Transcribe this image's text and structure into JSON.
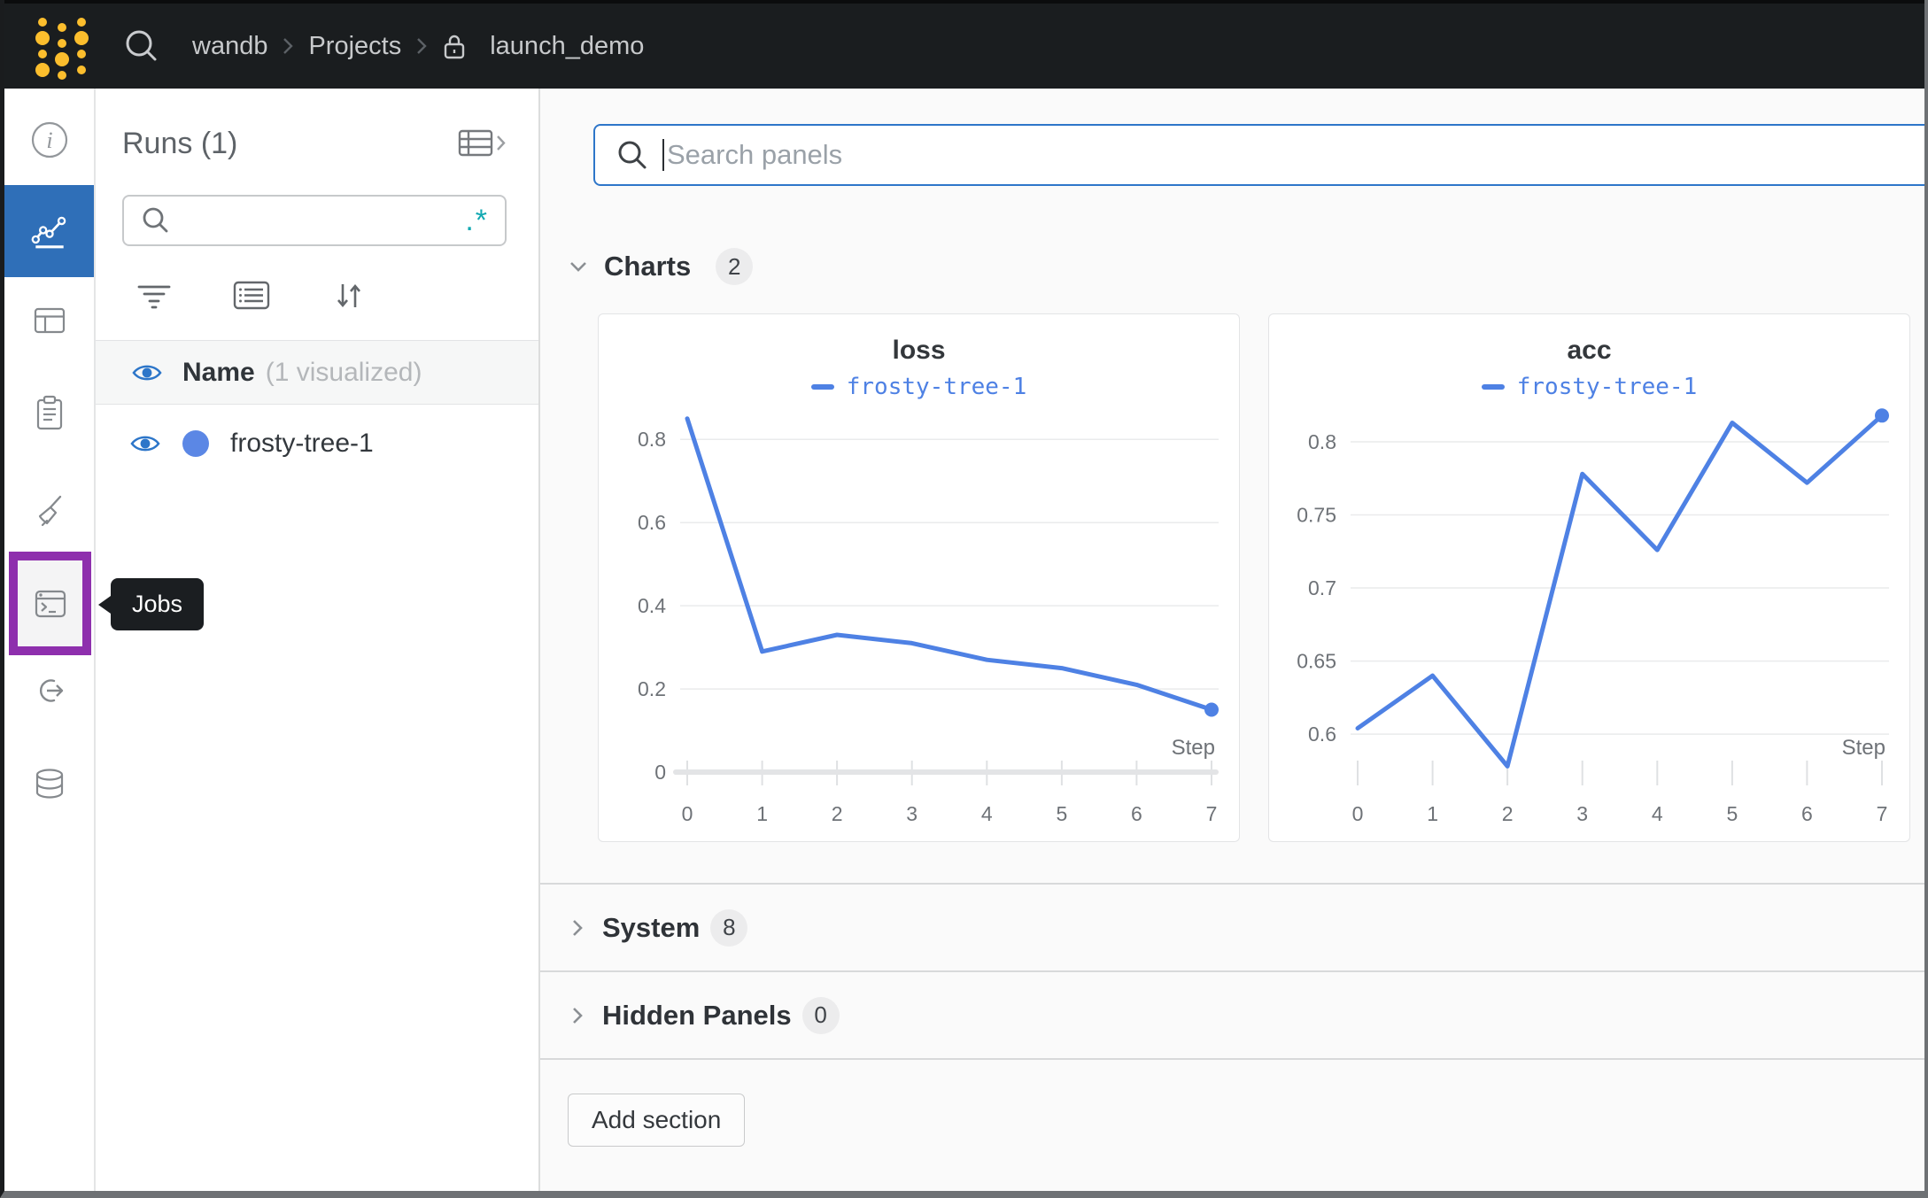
{
  "topbar": {
    "breadcrumb": [
      "wandb",
      "Projects",
      "launch_demo"
    ]
  },
  "sidebar": {
    "tooltip": "Jobs"
  },
  "runs_panel": {
    "title": "Runs (1)",
    "search_value": "",
    "regex_icon": ".*",
    "header_row": {
      "name_label": "Name",
      "visualized_label": "(1 visualized)"
    },
    "runs": [
      {
        "name": "frosty-tree-1",
        "color": "#5b87e5"
      }
    ]
  },
  "main": {
    "search": {
      "placeholder": "Search panels",
      "value": ""
    },
    "sections": [
      {
        "label": "Charts",
        "count": "2",
        "expanded": true
      },
      {
        "label": "System",
        "count": "8",
        "expanded": false
      },
      {
        "label": "Hidden Panels",
        "count": "0",
        "expanded": false
      }
    ],
    "add_section_label": "Add section"
  },
  "colors": {
    "topbar_bg": "#1a1d1f",
    "logo_yellow": "#fcbe2d",
    "accent_blue": "#2e76c9",
    "sidebar_active_blue": "#2f6fb8",
    "highlight_purple": "#8e2fad",
    "regex_teal": "#12a9b2",
    "run_line": "#4e81e4"
  },
  "chart_data": [
    {
      "type": "line",
      "title": "loss",
      "x": [
        0,
        1,
        2,
        3,
        4,
        5,
        6,
        7
      ],
      "series": [
        {
          "name": "frosty-tree-1",
          "color": "#4e81e4",
          "values": [
            0.85,
            0.29,
            0.33,
            0.31,
            0.27,
            0.25,
            0.21,
            0.15
          ]
        }
      ],
      "xlabel": "Step",
      "ylabel": "",
      "ylim": [
        0,
        0.875
      ],
      "yticks": [
        {
          "v": 0,
          "label": "0"
        },
        {
          "v": 0.2,
          "label": "0.2"
        },
        {
          "v": 0.4,
          "label": "0.4"
        },
        {
          "v": 0.6,
          "label": "0.6"
        },
        {
          "v": 0.8,
          "label": "0.8"
        }
      ],
      "xticks": [
        "0",
        "1",
        "2",
        "3",
        "4",
        "5",
        "6",
        "7"
      ],
      "grid": "horizontal",
      "legend_position": "top",
      "zero_line": true,
      "end_marker": true
    },
    {
      "type": "line",
      "title": "acc",
      "x": [
        0,
        1,
        2,
        3,
        4,
        5,
        6,
        7
      ],
      "series": [
        {
          "name": "frosty-tree-1",
          "color": "#4e81e4",
          "values": [
            0.604,
            0.64,
            0.578,
            0.778,
            0.726,
            0.813,
            0.772,
            0.818
          ]
        }
      ],
      "xlabel": "Step",
      "ylabel": "",
      "ylim": [
        0.574,
        0.823
      ],
      "yticks": [
        {
          "v": 0.6,
          "label": "0.6"
        },
        {
          "v": 0.65,
          "label": "0.65"
        },
        {
          "v": 0.7,
          "label": "0.7"
        },
        {
          "v": 0.75,
          "label": "0.75"
        },
        {
          "v": 0.8,
          "label": "0.8"
        }
      ],
      "xticks": [
        "0",
        "1",
        "2",
        "3",
        "4",
        "5",
        "6",
        "7"
      ],
      "grid": "horizontal",
      "legend_position": "top",
      "zero_line": false,
      "end_marker": true
    }
  ]
}
